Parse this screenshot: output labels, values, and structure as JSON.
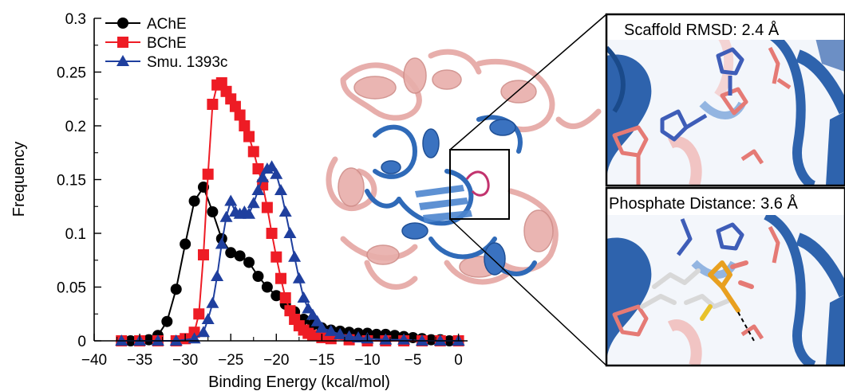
{
  "colors": {
    "ache": "#000000",
    "bche": "#ee1c25",
    "smu": "#1f3f9e",
    "protein_red": "#e3a09d",
    "protein_blue": "#2f6ab8"
  },
  "chart_data": {
    "type": "line",
    "xlabel": "Binding Energy (kcal/mol)",
    "ylabel": "Frequency",
    "xlim": [
      -40,
      1
    ],
    "ylim": [
      0,
      0.3
    ],
    "xticks": [
      -40,
      -35,
      -30,
      -25,
      -20,
      -15,
      -10,
      -5,
      0
    ],
    "xtick_labels": [
      "−40",
      "−35",
      "−30",
      "−25",
      "−20",
      "−15",
      "−10",
      "−5",
      "0"
    ],
    "yticks": [
      0,
      0.05,
      0.1,
      0.15,
      0.2,
      0.25,
      0.3
    ],
    "ytick_labels": [
      "0",
      "0.05",
      "0.1",
      "0.15",
      "0.2",
      "0.25",
      "0.3"
    ],
    "legend_position": "top-left",
    "grid": false,
    "series": [
      {
        "name": "AChE",
        "marker": "circle",
        "color": "#000000",
        "x": [
          -37,
          -36,
          -35,
          -34,
          -33,
          -32,
          -31,
          -30,
          -29,
          -28,
          -27,
          -26,
          -25,
          -24,
          -23,
          -22,
          -21,
          -20,
          -19,
          -18,
          -17,
          -16,
          -15,
          -14,
          -13,
          -12,
          -11,
          -10,
          -9,
          -8,
          -7,
          -6,
          -5,
          -4,
          -3,
          -2,
          -1,
          0
        ],
        "y": [
          0,
          0,
          0,
          0.001,
          0.005,
          0.018,
          0.048,
          0.09,
          0.13,
          0.143,
          0.12,
          0.095,
          0.082,
          0.079,
          0.073,
          0.06,
          0.05,
          0.042,
          0.034,
          0.027,
          0.02,
          0.015,
          0.012,
          0.01,
          0.009,
          0.008,
          0.007,
          0.007,
          0.006,
          0.006,
          0.005,
          0.004,
          0.003,
          0.002,
          0.001,
          0.001,
          0,
          0
        ]
      },
      {
        "name": "BChE",
        "marker": "square",
        "color": "#ee1c25",
        "x": [
          -37,
          -35,
          -33,
          -31,
          -30,
          -29,
          -28.5,
          -28,
          -27.5,
          -27,
          -26.5,
          -26,
          -25.5,
          -25,
          -24.5,
          -24,
          -23.5,
          -23,
          -22.5,
          -22,
          -21.5,
          -21,
          -20.5,
          -20,
          -19.5,
          -19,
          -18.5,
          -18,
          -17.5,
          -17,
          -16.5,
          -16,
          -15,
          -14,
          -12,
          -10,
          -8,
          -6,
          -4,
          -2,
          0
        ],
        "y": [
          0,
          0,
          0,
          0,
          0.002,
          0.008,
          0.025,
          0.08,
          0.155,
          0.22,
          0.238,
          0.24,
          0.232,
          0.225,
          0.218,
          0.21,
          0.2,
          0.19,
          0.176,
          0.16,
          0.145,
          0.124,
          0.1,
          0.078,
          0.058,
          0.04,
          0.028,
          0.02,
          0.014,
          0.01,
          0.007,
          0.005,
          0.003,
          0.002,
          0.001,
          0,
          0,
          0,
          0,
          0,
          0
        ]
      },
      {
        "name": "Smu. 1393c",
        "marker": "triangle",
        "color": "#1f3f9e",
        "x": [
          -37,
          -35,
          -33,
          -31,
          -29,
          -28,
          -27.5,
          -27,
          -26.5,
          -26,
          -25.5,
          -25,
          -24.5,
          -24,
          -23.5,
          -23,
          -22.5,
          -22,
          -21.5,
          -21,
          -20.5,
          -20,
          -19.5,
          -19,
          -18.5,
          -18,
          -17.5,
          -17,
          -16.5,
          -16,
          -15.5,
          -15,
          -14,
          -13,
          -12,
          -11,
          -10,
          -8,
          -6,
          -4,
          -2,
          0
        ],
        "y": [
          0,
          0,
          0,
          0,
          0.002,
          0.008,
          0.02,
          0.035,
          0.06,
          0.09,
          0.115,
          0.13,
          0.12,
          0.118,
          0.12,
          0.118,
          0.128,
          0.14,
          0.152,
          0.16,
          0.162,
          0.155,
          0.14,
          0.12,
          0.1,
          0.078,
          0.058,
          0.04,
          0.03,
          0.024,
          0.018,
          0.012,
          0.009,
          0.006,
          0.004,
          0.003,
          0.002,
          0.001,
          0.001,
          0,
          0,
          0
        ]
      }
    ]
  },
  "insets": {
    "top": {
      "title": "Scaffold RMSD: 2.4 Å"
    },
    "bottom": {
      "title": "Phosphate Distance: 3.6 Å"
    }
  }
}
